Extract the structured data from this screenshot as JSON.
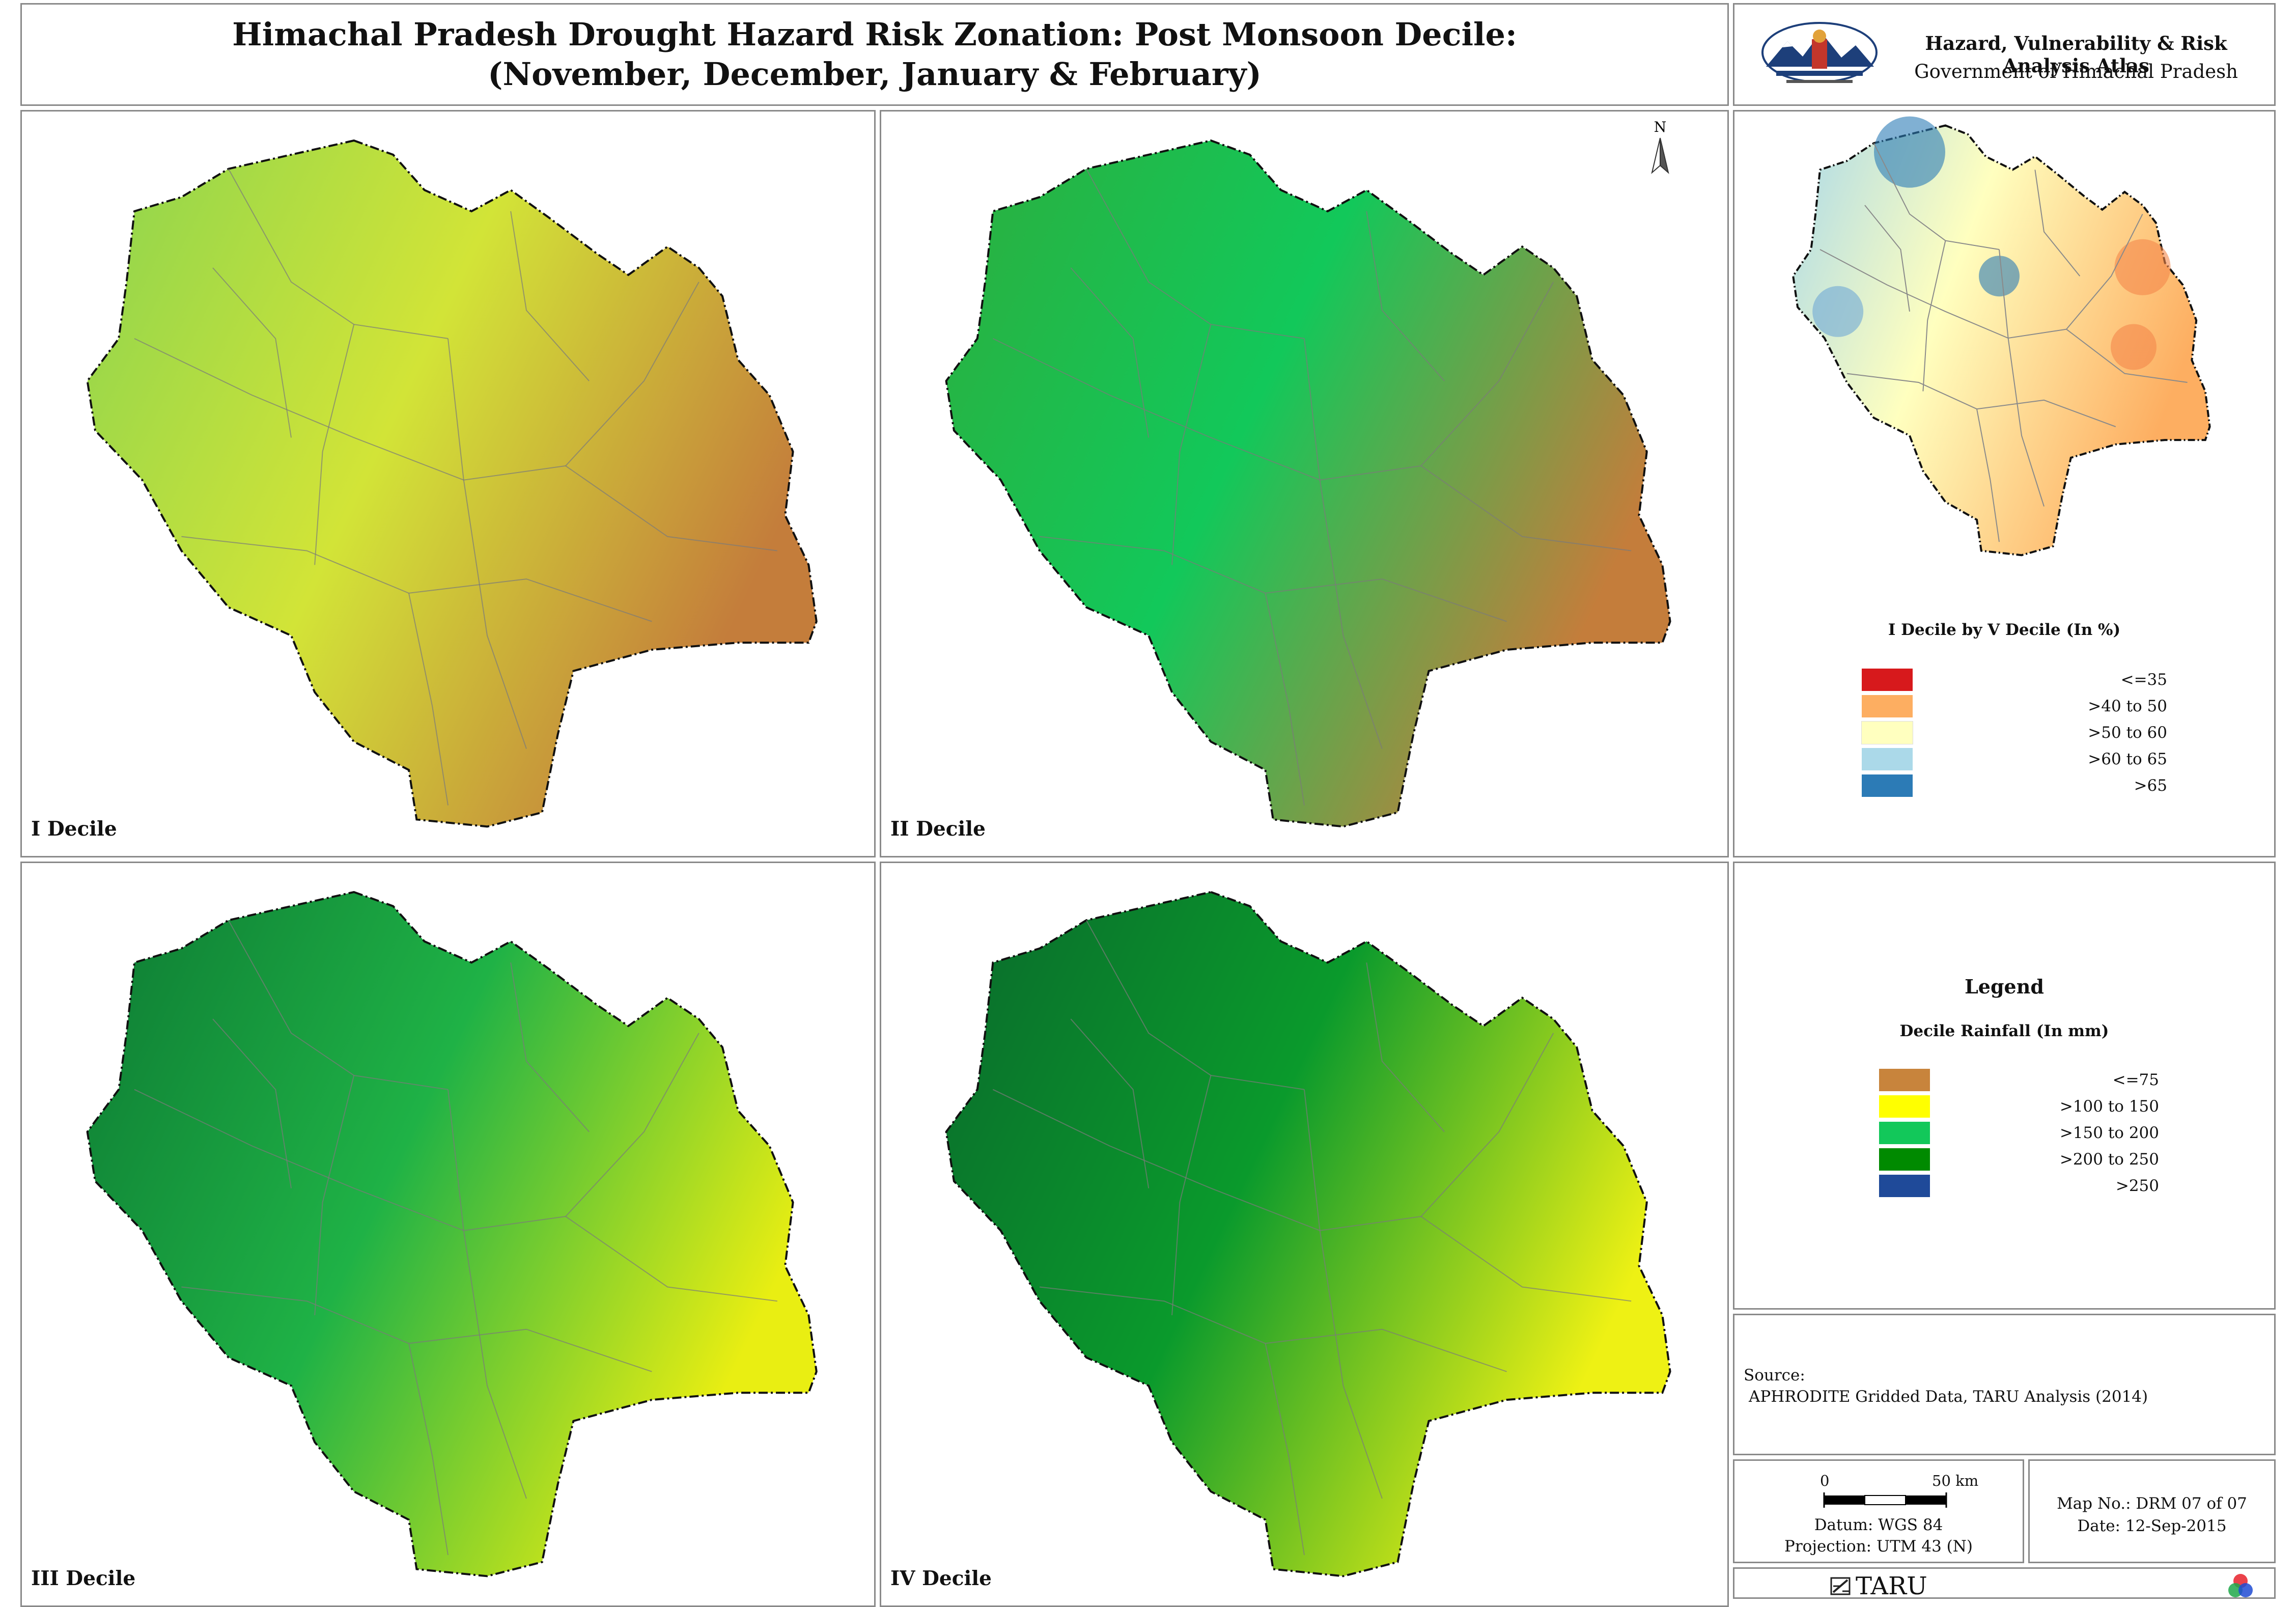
{
  "title": {
    "line1": "Himachal Pradesh Drought Hazard Risk Zonation: Post Monsoon Decile:",
    "line2": "(November, December, January & February)"
  },
  "atlas": {
    "title": "Hazard, Vulnerability & Risk Analysis Atlas",
    "subtitle": "Government of Himachal Pradesh",
    "logo_icon": "himachal-government-emblem"
  },
  "maps": [
    {
      "label": "I Decile",
      "palette": {
        "nw": "#8bd44f",
        "center": "#d2e437",
        "se": "#c47d3b"
      }
    },
    {
      "label": "II Decile",
      "palette": {
        "nw": "#2cae3e",
        "center": "#12c85a",
        "se": "#c47d3b"
      }
    },
    {
      "label": "III Decile",
      "palette": {
        "nw": "#0d7a33",
        "center": "#1fb246",
        "se": "#e9ee12"
      }
    },
    {
      "label": "IV Decile",
      "palette": {
        "nw": "#0a6a2c",
        "center": "#0a9a2c",
        "se": "#eef114"
      }
    }
  ],
  "north_arrow": {
    "label": "N",
    "icon": "north-arrow-icon"
  },
  "inset": {
    "legend_title": "I Decile by V Decile (In %)",
    "classes": [
      {
        "label": "<=35",
        "color": "#d7191c"
      },
      {
        "label": ">40 to 50",
        "color": "#fdae61"
      },
      {
        "label": ">50 to 60",
        "color": "#ffffbf"
      },
      {
        "label": ">60 to 65",
        "color": "#abd9e9"
      },
      {
        "label": ">65",
        "color": "#2c7bb6"
      }
    ]
  },
  "legend": {
    "heading": "Legend",
    "subtitle": "Decile Rainfall (In mm)",
    "classes": [
      {
        "label": "<=75",
        "color": "#c8843c"
      },
      {
        "label": ">100 to 150",
        "color": "#ffff00"
      },
      {
        "label": ">150 to 200",
        "color": "#12c85a"
      },
      {
        "label": ">200 to 250",
        "color": "#008a00"
      },
      {
        "label": ">250",
        "color": "#1f4a99"
      }
    ]
  },
  "source": {
    "label": "Source:",
    "text": "APHRODITE Gridded Data, TARU Analysis (2014)"
  },
  "scale": {
    "zero": "0",
    "fifty": "50 km",
    "datum": "Datum: WGS 84",
    "projection": "Projection: UTM 43 (N)"
  },
  "map_info": {
    "map_no": "Map No.: DRM 07 of 07",
    "date": "Date: 12-Sep-2015"
  },
  "footer": {
    "taru": "TARU",
    "taru_icon": "taru-logo-icon",
    "rgb_icon": "rgb-circles-logo-icon"
  }
}
